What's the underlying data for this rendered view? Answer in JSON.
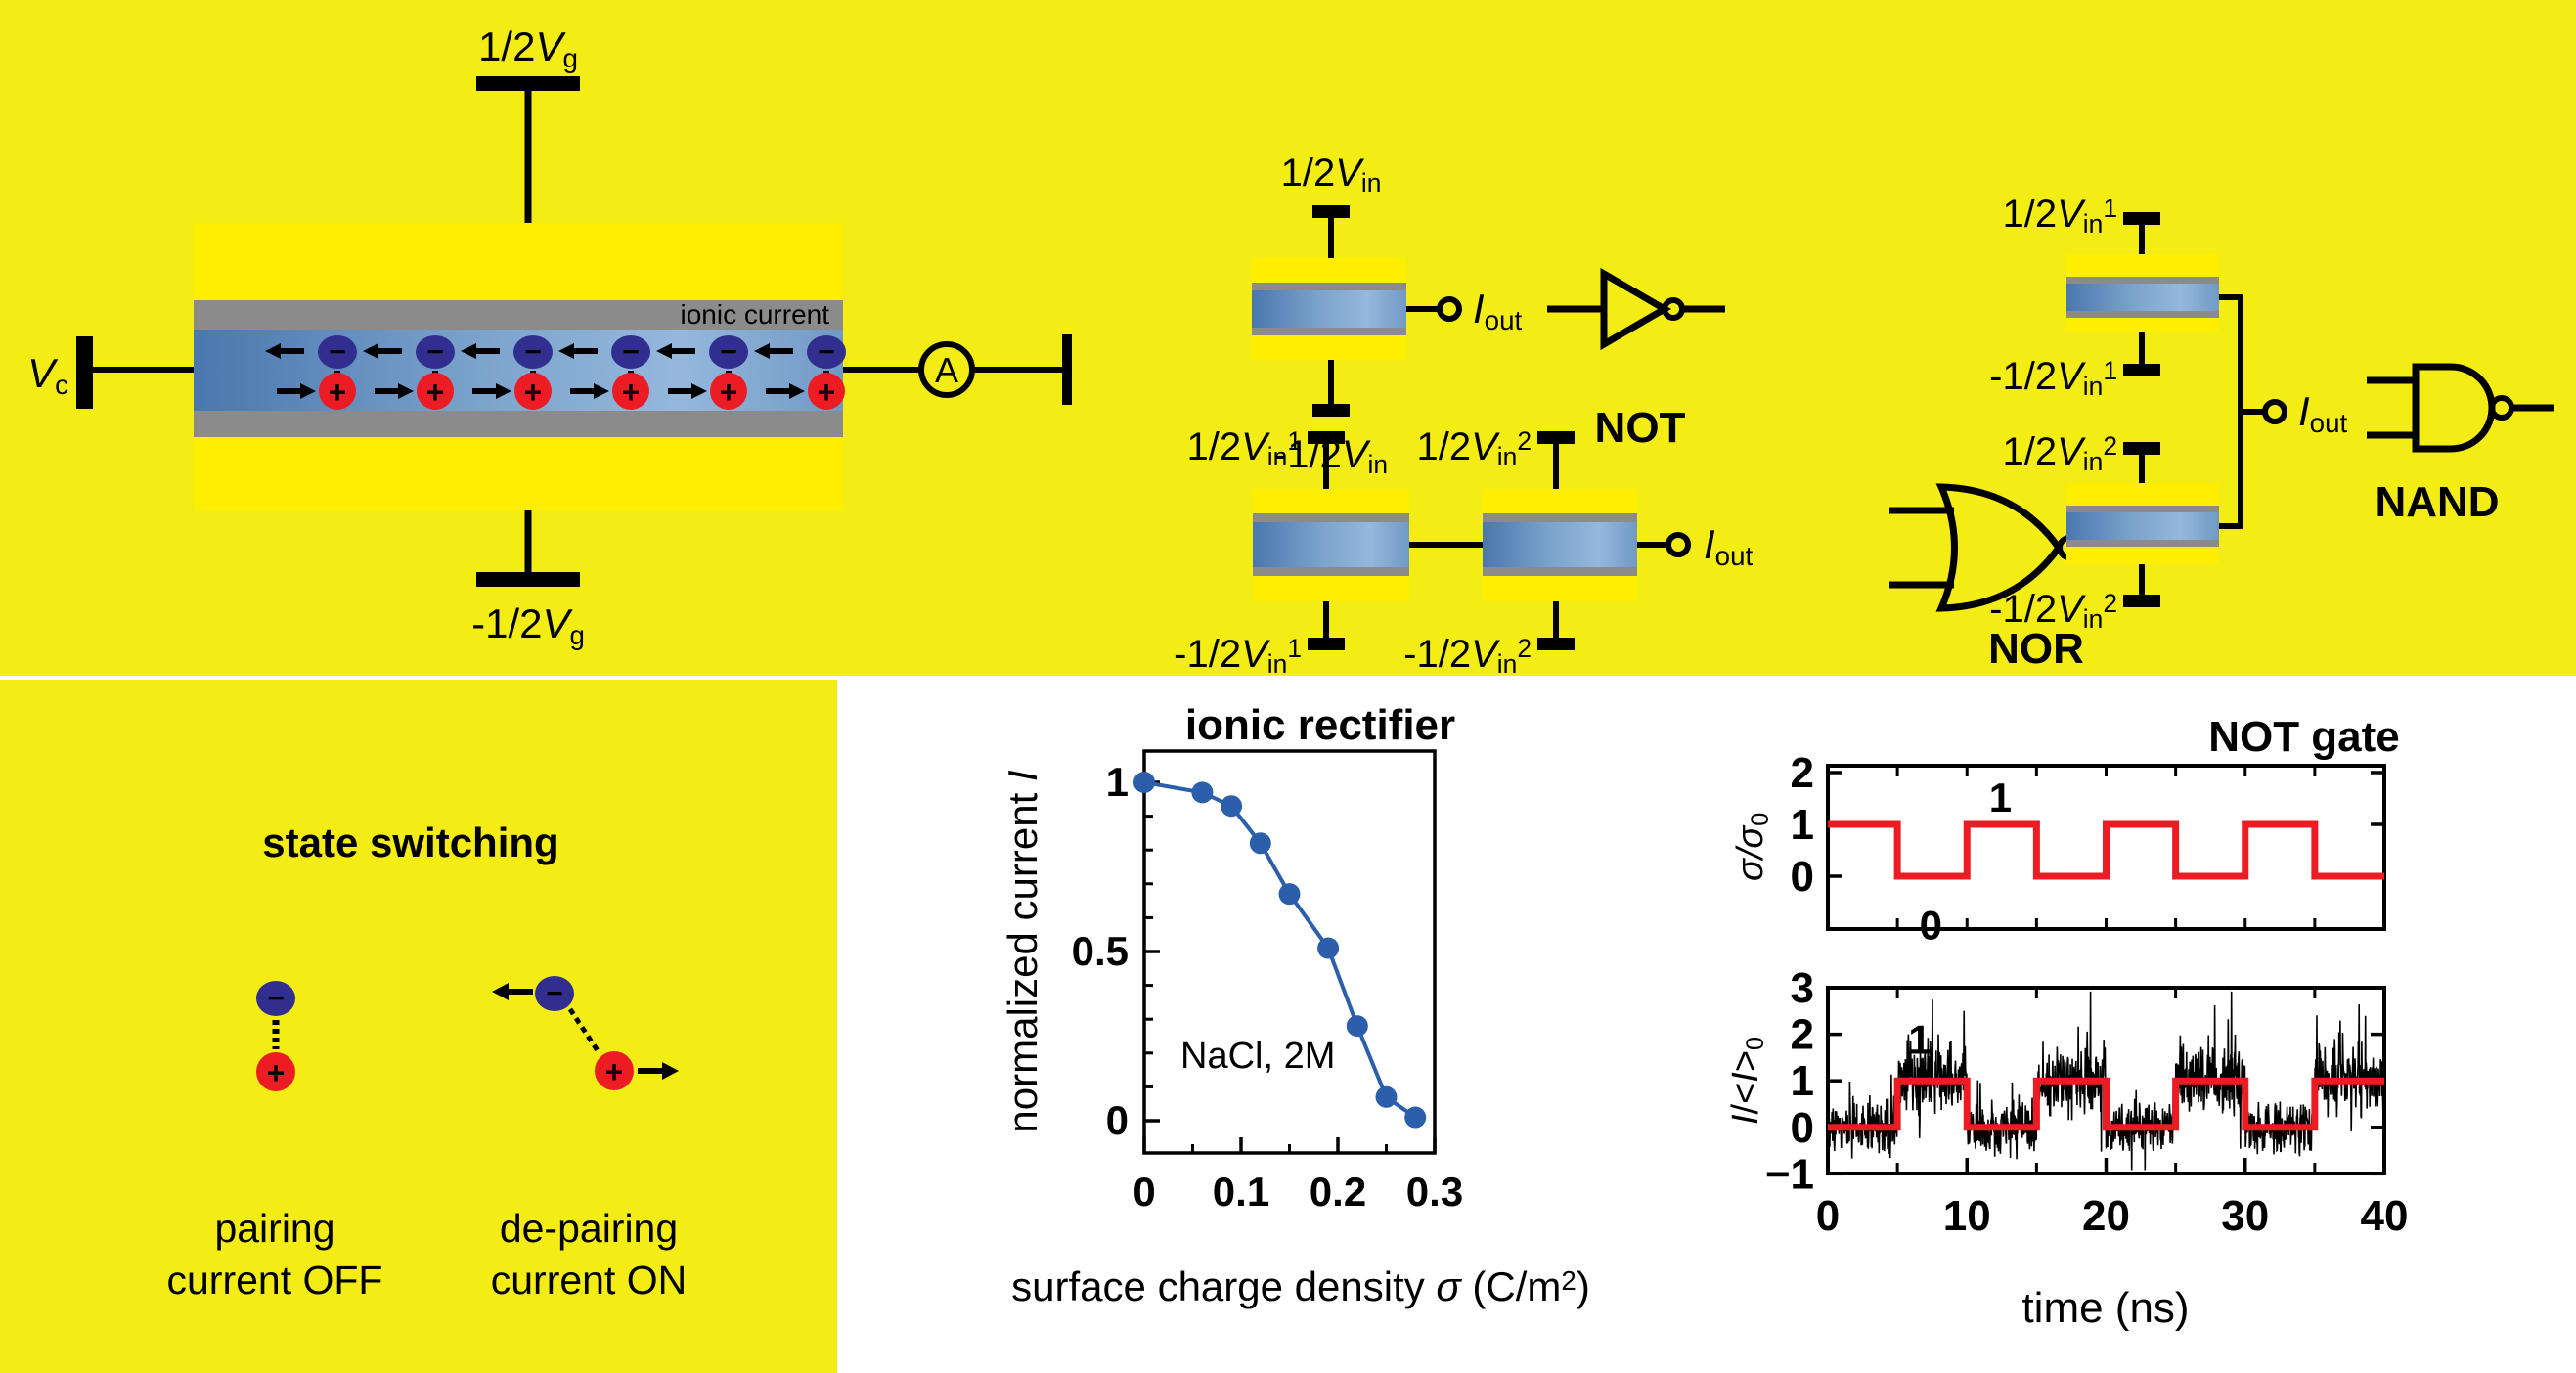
{
  "colors": {
    "band_yellow": "#f3ec15",
    "device_yellow": "#ffee00",
    "wall_gray": "#8b8b8b",
    "channel_blue_dark": "#4a77ae",
    "channel_blue_light": "#95b8dc",
    "ion_blue": "#312e8f",
    "ion_red": "#ec1c24",
    "wave_red": "#ec1c24",
    "data_blue": "#2b5fac",
    "heading_purple": "#5f2683",
    "channel_text_white": "#ffffff"
  },
  "main_device": {
    "gate_top_label": [
      [
        "1/2",
        "n"
      ],
      [
        "V",
        "i"
      ],
      [
        "g",
        "sub"
      ]
    ],
    "gate_bottom_label": [
      [
        "-1/2",
        "n"
      ],
      [
        "V",
        "i"
      ],
      [
        "g",
        "sub"
      ]
    ],
    "contact_label": [
      [
        "V",
        "i"
      ],
      [
        "c",
        "sub"
      ]
    ],
    "channel_label": "ionic current",
    "ammeter_label": "A",
    "anion_symbol": "−",
    "cation_symbol": "+",
    "ion_pair_count": 6
  },
  "logic_circuits": {
    "not": {
      "name": "NOT",
      "input_top": [
        [
          "1/2",
          "n"
        ],
        [
          "V",
          "i"
        ],
        [
          "in",
          "sub"
        ]
      ],
      "input_bottom": [
        [
          "-1/2",
          "n"
        ],
        [
          "V",
          "i"
        ],
        [
          "in",
          "sub"
        ]
      ],
      "output": [
        [
          "I",
          "i"
        ],
        [
          "out",
          "sub"
        ]
      ]
    },
    "nor": {
      "name": "NOR",
      "input1_top": [
        [
          "1/2",
          "n"
        ],
        [
          "V",
          "i"
        ],
        [
          "in",
          "sub"
        ],
        [
          "1",
          "sup"
        ]
      ],
      "input1_bottom": [
        [
          "-1/2",
          "n"
        ],
        [
          "V",
          "i"
        ],
        [
          "in",
          "sub"
        ],
        [
          "1",
          "sup"
        ]
      ],
      "input2_top": [
        [
          "1/2",
          "n"
        ],
        [
          "V",
          "i"
        ],
        [
          "in",
          "sub"
        ],
        [
          "2",
          "sup"
        ]
      ],
      "input2_bottom": [
        [
          "-1/2",
          "n"
        ],
        [
          "V",
          "i"
        ],
        [
          "in",
          "sub"
        ],
        [
          "2",
          "sup"
        ]
      ],
      "output": [
        [
          "I",
          "i"
        ],
        [
          "out",
          "sub"
        ]
      ]
    },
    "nand": {
      "name": "NAND",
      "input1_top": [
        [
          "1/2",
          "n"
        ],
        [
          "V",
          "i"
        ],
        [
          "in",
          "sub"
        ],
        [
          "1",
          "sup"
        ]
      ],
      "input1_bottom": [
        [
          "-1/2",
          "n"
        ],
        [
          "V",
          "i"
        ],
        [
          "in",
          "sub"
        ],
        [
          "1",
          "sup"
        ]
      ],
      "input2_top": [
        [
          "1/2",
          "n"
        ],
        [
          "V",
          "i"
        ],
        [
          "in",
          "sub"
        ],
        [
          "2",
          "sup"
        ]
      ],
      "input2_bottom": [
        [
          "-1/2",
          "n"
        ],
        [
          "V",
          "i"
        ],
        [
          "in",
          "sub"
        ],
        [
          "2",
          "sup"
        ]
      ],
      "output": [
        [
          "I",
          "i"
        ],
        [
          "out",
          "sub"
        ]
      ]
    }
  },
  "state_switching": {
    "title": "state switching",
    "left_caption_line1": "pairing",
    "left_caption_line2": "current OFF",
    "right_caption_line1": "de-pairing",
    "right_caption_line2": "current ON",
    "anion_symbol": "−",
    "cation_symbol": "+"
  },
  "chart_data": [
    {
      "id": "ionic_rectifier",
      "type": "line",
      "title": "ionic rectifier",
      "xlabel_parts": [
        [
          "surface charge density ",
          "n"
        ],
        [
          "σ",
          "i"
        ],
        [
          " (C/m",
          "n"
        ],
        [
          "2",
          "sup"
        ],
        [
          ")",
          "n"
        ]
      ],
      "ylabel_parts": [
        [
          "normalized current ",
          "n"
        ],
        [
          "I",
          "i"
        ]
      ],
      "annotation": "NaCl, 2M",
      "x": [
        0,
        0.06,
        0.09,
        0.12,
        0.15,
        0.19,
        0.22,
        0.25,
        0.28
      ],
      "y": [
        1.0,
        0.97,
        0.93,
        0.82,
        0.67,
        0.51,
        0.28,
        0.07,
        0.01
      ],
      "xlim": [
        0,
        0.3
      ],
      "ylim": [
        -0.1,
        1.09
      ],
      "xticks": [
        0,
        0.1,
        0.2,
        0.3
      ],
      "xticks_minor": [
        0.05,
        0.15,
        0.25
      ],
      "yticks": [
        0,
        0.5,
        1
      ],
      "yticks_minor": [
        0.1,
        0.2,
        0.3,
        0.4,
        0.6,
        0.7,
        0.8,
        0.9
      ],
      "marker": "circle",
      "grid": false,
      "legend": "none"
    },
    {
      "id": "not_gate_input",
      "type": "line",
      "subtype": "square_wave",
      "title": "NOT gate",
      "ylabel_parts": [
        [
          "σ/σ",
          "i"
        ],
        [
          "0",
          "sub"
        ]
      ],
      "edges": [
        0,
        5,
        10,
        15,
        20,
        25,
        30,
        35,
        40
      ],
      "levels": [
        1,
        0,
        1,
        0,
        1,
        0,
        1,
        0
      ],
      "xlim": [
        0,
        40
      ],
      "ylim": [
        -1,
        2.1
      ],
      "yticks": [
        0,
        1,
        2
      ],
      "xticks_minor": [
        5,
        10,
        15,
        20,
        25,
        30,
        35
      ],
      "annotations": [
        {
          "text": "1",
          "x": 12.4,
          "y": 1.53,
          "color": "#000000"
        },
        {
          "text": "0",
          "x": 7.4,
          "y": -0.93,
          "color": "#000000"
        }
      ]
    },
    {
      "id": "not_gate_output",
      "type": "line",
      "subtype": "square_wave_with_noise",
      "xlabel": "time (ns)",
      "ylabel_parts": [
        [
          "I",
          "i"
        ],
        [
          "/<",
          "n"
        ],
        [
          "I",
          "i"
        ],
        [
          ">",
          "n"
        ],
        [
          "0",
          "sub"
        ]
      ],
      "edges": [
        0,
        5,
        10,
        15,
        20,
        25,
        30,
        35,
        40
      ],
      "levels": [
        0,
        1,
        0,
        1,
        0,
        1,
        0,
        1
      ],
      "xlim": [
        0,
        40
      ],
      "ylim": [
        -1,
        3
      ],
      "xticks": [
        0,
        10,
        20,
        30,
        40
      ],
      "xticks_minor": [
        5,
        15,
        25,
        35
      ],
      "yticks": [
        -1,
        0,
        1,
        2,
        3
      ],
      "noise": {
        "sigma": 0.31,
        "spike_rate": 0.1,
        "points": 1500
      },
      "annotations": [
        {
          "text": "1",
          "x": 6.6,
          "y": 1.9,
          "color": "#ec1c24"
        }
      ]
    }
  ]
}
